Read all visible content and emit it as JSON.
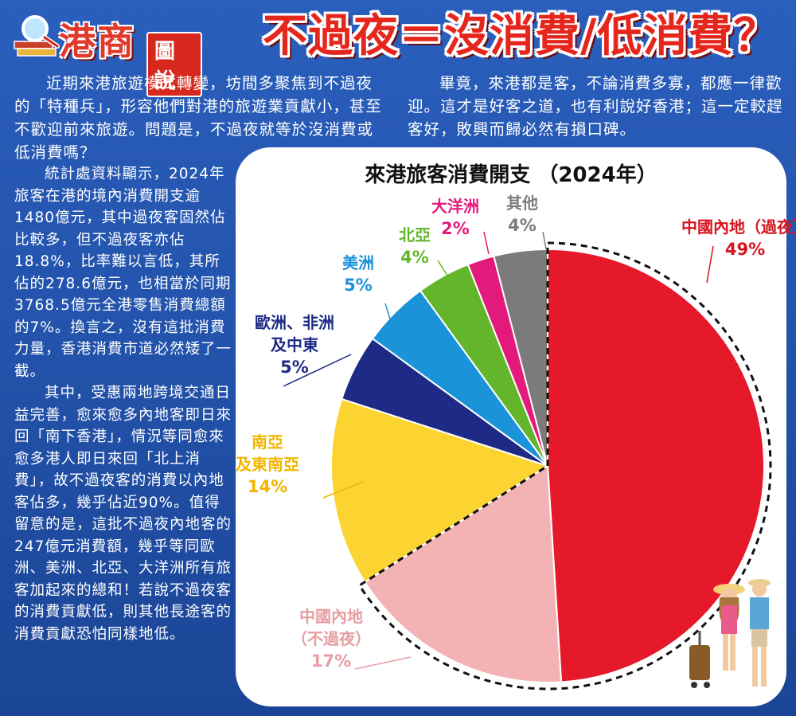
{
  "brand": {
    "name": "港商",
    "tag": "圖說",
    "icon": "magnifier-books-icon"
  },
  "headline": "不過夜＝沒消費/低消費？",
  "intro": {
    "p1": "近期來港旅遊模式轉變，坊間多聚焦到不過夜的「特種兵」，形容他們對港的旅遊業貢獻小，甚至不歡迎前來旅遊。問題是，不過夜就等於沒消費或低消費嗎？",
    "p2": "畢竟，來港都是客，不論消費多寡，都應一律歡迎。這才是好客之道，也有利說好香港；這一定較趕客好，敗興而歸必然有損口碑。"
  },
  "body": {
    "p3": "統計處資料顯示，2024年旅客在港的境內消費開支逾1480億元，其中過夜客固然佔比較多，但不過夜客亦佔18.8%，比率難以言低，其所佔的278.6億元，也相當於同期3768.5億元全港零售消費總額的7%。換言之，沒有這批消費力量，香港消費市道必然矮了一截。",
    "p4": "其中，受惠兩地跨境交通日益完善，愈來愈多內地客即日來回「南下香港」，情況等同愈來愈多港人即日來回「北上消費」，故不過夜客的消費以內地客佔多，幾乎佔近90%。值得留意的是，這批不過夜內地客的247億元消費額，幾乎等同歐洲、美洲、北亞、大洋洲所有旅客加起來的總和！若說不過夜客的消費貢獻低，則其他長途客的消費貢獻恐怕同樣地低。"
  },
  "chart_data": {
    "type": "pie",
    "title": "來港旅客消費開支 （2024年）",
    "start": "12 o'clock, clockwise",
    "slices": [
      {
        "label": "中國內地（過夜）",
        "lines": [
          "中國內地（過夜）",
          "49%"
        ],
        "value": 49,
        "color": "#e5192a",
        "text_color": "#d6141f"
      },
      {
        "label": "中國內地（不過夜）",
        "lines": [
          "中國內地",
          "（不過夜）",
          "17%"
        ],
        "value": 17,
        "color": "#f3b3b5",
        "text_color": "#e59ea2"
      },
      {
        "label": "南亞及東南亞",
        "lines": [
          "南亞",
          "及東南亞",
          "14%"
        ],
        "value": 14,
        "color": "#fbd432",
        "text_color": "#f2b600"
      },
      {
        "label": "歐洲、非洲及中東",
        "lines": [
          "歐洲、非洲",
          "及中東",
          "5%"
        ],
        "value": 5,
        "color": "#1d2a86",
        "text_color": "#1d2a86"
      },
      {
        "label": "美洲",
        "lines": [
          "美洲",
          "5%"
        ],
        "value": 5,
        "color": "#1a93d9",
        "text_color": "#1a93d9"
      },
      {
        "label": "北亞",
        "lines": [
          "北亞",
          "4%"
        ],
        "value": 4,
        "color": "#63b52b",
        "text_color": "#63b52b"
      },
      {
        "label": "大洋洲",
        "lines": [
          "大洋洲",
          "2%"
        ],
        "value": 2,
        "color": "#e3197b",
        "text_color": "#e3197b"
      },
      {
        "label": "其他",
        "lines": [
          "其他",
          "4%"
        ],
        "value": 4,
        "color": "#7b7b7b",
        "text_color": "#7b7b7b"
      }
    ],
    "highlight": "dashed outline around 中國內地 slices"
  }
}
